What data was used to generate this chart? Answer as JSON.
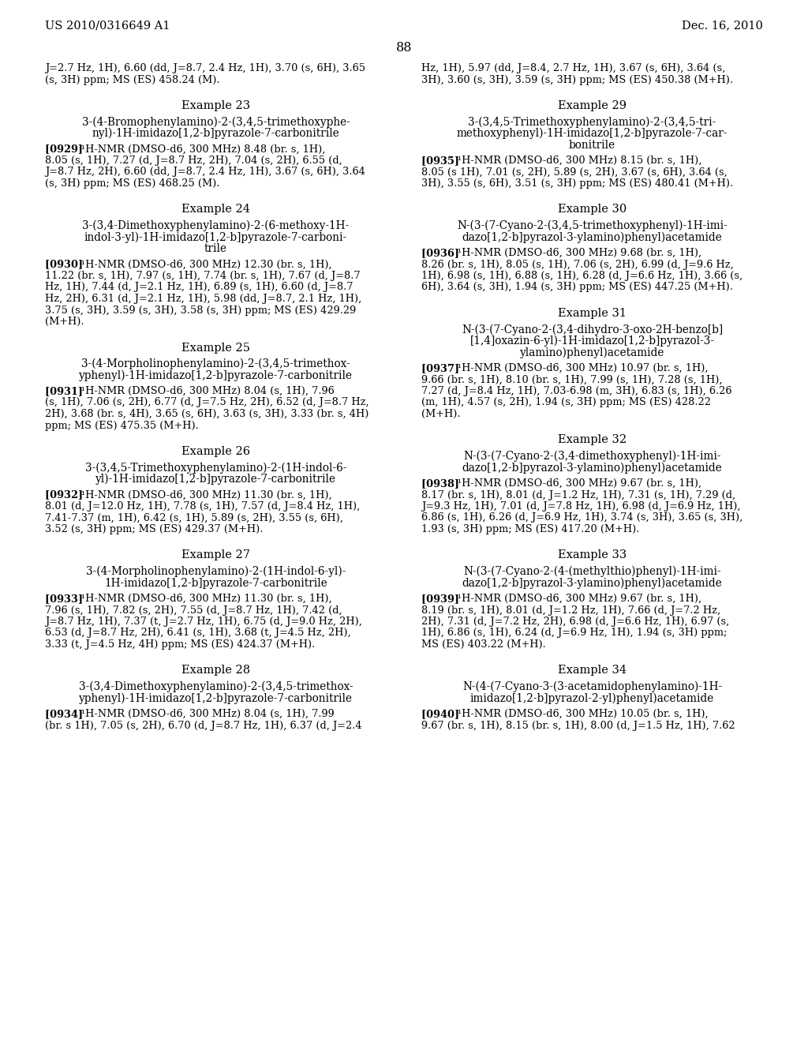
{
  "background_color": "#ffffff",
  "header_left": "US 2010/0316649 A1",
  "header_right": "Dec. 16, 2010",
  "page_number": "88",
  "left_column": [
    {
      "type": "continuation",
      "text": "J=2.7 Hz, 1H), 6.60 (dd, J=8.7, 2.4 Hz, 1H), 3.70 (s, 6H), 3.65\n(s, 3H) ppm; MS (ES) 458.24 (M)."
    },
    {
      "type": "example_header",
      "text": "Example 23"
    },
    {
      "type": "compound_title",
      "text": "3-(4-Bromophenylamino)-2-(3,4,5-trimethoxyphe-\nnyl)-1H-imidazo[1,2-b]pyrazole-7-carbonitrile"
    },
    {
      "type": "nmr",
      "ref": "[0929]",
      "text": "¹H-NMR (DMSO-d6, 300 MHz) 8.48 (br. s, 1H),\n8.05 (s, 1H), 7.27 (d, J=8.7 Hz, 2H), 7.04 (s, 2H), 6.55 (d,\nJ=8.7 Hz, 2H), 6.60 (dd, J=8.7, 2.4 Hz, 1H), 3.67 (s, 6H), 3.64\n(s, 3H) ppm; MS (ES) 468.25 (M)."
    },
    {
      "type": "example_header",
      "text": "Example 24"
    },
    {
      "type": "compound_title",
      "text": "3-(3,4-Dimethoxyphenylamino)-2-(6-methoxy-1H-\nindol-3-yl)-1H-imidazo[1,2-b]pyrazole-7-carboni-\ntrile"
    },
    {
      "type": "nmr",
      "ref": "[0930]",
      "text": "¹H-NMR (DMSO-d6, 300 MHz) 12.30 (br. s, 1H),\n11.22 (br. s, 1H), 7.97 (s, 1H), 7.74 (br. s, 1H), 7.67 (d, J=8.7\nHz, 1H), 7.44 (d, J=2.1 Hz, 1H), 6.89 (s, 1H), 6.60 (d, J=8.7\nHz, 2H), 6.31 (d, J=2.1 Hz, 1H), 5.98 (dd, J=8.7, 2.1 Hz, 1H),\n3.75 (s, 3H), 3.59 (s, 3H), 3.58 (s, 3H) ppm; MS (ES) 429.29\n(M+H)."
    },
    {
      "type": "example_header",
      "text": "Example 25"
    },
    {
      "type": "compound_title",
      "text": "3-(4-Morpholinophenylamino)-2-(3,4,5-trimethox-\nyphenyl)-1H-imidazo[1,2-b]pyrazole-7-carbonitrile"
    },
    {
      "type": "nmr",
      "ref": "[0931]",
      "text": "¹H-NMR (DMSO-d6, 300 MHz) 8.04 (s, 1H), 7.96\n(s, 1H), 7.06 (s, 2H), 6.77 (d, J=7.5 Hz, 2H), 6.52 (d, J=8.7 Hz,\n2H), 3.68 (br. s, 4H), 3.65 (s, 6H), 3.63 (s, 3H), 3.33 (br. s, 4H)\nppm; MS (ES) 475.35 (M+H)."
    },
    {
      "type": "example_header",
      "text": "Example 26"
    },
    {
      "type": "compound_title",
      "text": "3-(3,4,5-Trimethoxyphenylamino)-2-(1H-indol-6-\nyl)-1H-imidazo[1,2-b]pyrazole-7-carbonitrile"
    },
    {
      "type": "nmr",
      "ref": "[0932]",
      "text": "¹H-NMR (DMSO-d6, 300 MHz) 11.30 (br. s, 1H),\n8.01 (d, J=12.0 Hz, 1H), 7.78 (s, 1H), 7.57 (d, J=8.4 Hz, 1H),\n7.41-7.37 (m, 1H), 6.42 (s, 1H), 5.89 (s, 2H), 3.55 (s, 6H),\n3.52 (s, 3H) ppm; MS (ES) 429.37 (M+H)."
    },
    {
      "type": "example_header",
      "text": "Example 27"
    },
    {
      "type": "compound_title",
      "text": "3-(4-Morpholinophenylamino)-2-(1H-indol-6-yl)-\n1H-imidazo[1,2-b]pyrazole-7-carbonitrile"
    },
    {
      "type": "nmr",
      "ref": "[0933]",
      "text": "¹H-NMR (DMSO-d6, 300 MHz) 11.30 (br. s, 1H),\n7.96 (s, 1H), 7.82 (s, 2H), 7.55 (d, J=8.7 Hz, 1H), 7.42 (d,\nJ=8.7 Hz, 1H), 7.37 (t, J=2.7 Hz, 1H), 6.75 (d, J=9.0 Hz, 2H),\n6.53 (d, J=8.7 Hz, 2H), 6.41 (s, 1H), 3.68 (t, J=4.5 Hz, 2H),\n3.33 (t, J=4.5 Hz, 4H) ppm; MS (ES) 424.37 (M+H)."
    },
    {
      "type": "example_header",
      "text": "Example 28"
    },
    {
      "type": "compound_title",
      "text": "3-(3,4-Dimethoxyphenylamino)-2-(3,4,5-trimethox-\nyphenyl)-1H-imidazo[1,2-b]pyrazole-7-carbonitrile"
    },
    {
      "type": "nmr_start",
      "ref": "[0934]",
      "text": "¹H-NMR (DMSO-d6, 300 MHz) 8.04 (s, 1H), 7.99\n(br. s 1H), 7.05 (s, 2H), 6.70 (d, J=8.7 Hz, 1H), 6.37 (d, J=2.4"
    }
  ],
  "right_column": [
    {
      "type": "continuation",
      "text": "Hz, 1H), 5.97 (dd, J=8.4, 2.7 Hz, 1H), 3.67 (s, 6H), 3.64 (s,\n3H), 3.60 (s, 3H), 3.59 (s, 3H) ppm; MS (ES) 450.38 (M+H)."
    },
    {
      "type": "example_header",
      "text": "Example 29"
    },
    {
      "type": "compound_title",
      "text": "3-(3,4,5-Trimethoxyphenylamino)-2-(3,4,5-tri-\nmethoxyphenyl)-1H-imidazo[1,2-b]pyrazole-7-car-\nbonitrile"
    },
    {
      "type": "nmr",
      "ref": "[0935]",
      "text": "¹H-NMR (DMSO-d6, 300 MHz) 8.15 (br. s, 1H),\n8.05 (s 1H), 7.01 (s, 2H), 5.89 (s, 2H), 3.67 (s, 6H), 3.64 (s,\n3H), 3.55 (s, 6H), 3.51 (s, 3H) ppm; MS (ES) 480.41 (M+H)."
    },
    {
      "type": "example_header",
      "text": "Example 30"
    },
    {
      "type": "compound_title",
      "text": "N-(3-(7-Cyano-2-(3,4,5-trimethoxyphenyl)-1H-imi-\ndazo[1,2-b]pyrazol-3-ylamino)phenyl)acetamide"
    },
    {
      "type": "nmr",
      "ref": "[0936]",
      "text": "¹H-NMR (DMSO-d6, 300 MHz) 9.68 (br. s, 1H),\n8.26 (br. s, 1H), 8.05 (s, 1H), 7.06 (s, 2H), 6.99 (d, J=9.6 Hz,\n1H), 6.98 (s, 1H), 6.88 (s, 1H), 6.28 (d, J=6.6 Hz, 1H), 3.66 (s,\n6H), 3.64 (s, 3H), 1.94 (s, 3H) ppm; MS (ES) 447.25 (M+H)."
    },
    {
      "type": "example_header",
      "text": "Example 31"
    },
    {
      "type": "compound_title",
      "text": "N-(3-(7-Cyano-2-(3,4-dihydro-3-oxo-2H-benzo[b]\n[1,4]oxazin-6-yl)-1H-imidazo[1,2-b]pyrazol-3-\nylamino)phenyl)acetamide"
    },
    {
      "type": "nmr",
      "ref": "[0937]",
      "text": "¹H-NMR (DMSO-d6, 300 MHz) 10.97 (br. s, 1H),\n9.66 (br. s, 1H), 8.10 (br. s, 1H), 7.99 (s, 1H), 7.28 (s, 1H),\n7.27 (d, J=8.4 Hz, 1H), 7.03-6.98 (m, 3H), 6.83 (s, 1H), 6.26\n(m, 1H), 4.57 (s, 2H), 1.94 (s, 3H) ppm; MS (ES) 428.22\n(M+H)."
    },
    {
      "type": "example_header",
      "text": "Example 32"
    },
    {
      "type": "compound_title",
      "text": "N-(3-(7-Cyano-2-(3,4-dimethoxyphenyl)-1H-imi-\ndazo[1,2-b]pyrazol-3-ylamino)phenyl)acetamide"
    },
    {
      "type": "nmr",
      "ref": "[0938]",
      "text": "¹H-NMR (DMSO-d6, 300 MHz) 9.67 (br. s, 1H),\n8.17 (br. s, 1H), 8.01 (d, J=1.2 Hz, 1H), 7.31 (s, 1H), 7.29 (d,\nJ=9.3 Hz, 1H), 7.01 (d, J=7.8 Hz, 1H), 6.98 (d, J=6.9 Hz, 1H),\n6.86 (s, 1H), 6.26 (d, J=6.9 Hz, 1H), 3.74 (s, 3H), 3.65 (s, 3H),\n1.93 (s, 3H) ppm; MS (ES) 417.20 (M+H)."
    },
    {
      "type": "example_header",
      "text": "Example 33"
    },
    {
      "type": "compound_title",
      "text": "N-(3-(7-Cyano-2-(4-(methylthio)phenyl)-1H-imi-\ndazo[1,2-b]pyrazol-3-ylamino)phenyl)acetamide"
    },
    {
      "type": "nmr",
      "ref": "[0939]",
      "text": "¹H-NMR (DMSO-d6, 300 MHz) 9.67 (br. s, 1H),\n8.19 (br. s, 1H), 8.01 (d, J=1.2 Hz, 1H), 7.66 (d, J=7.2 Hz,\n2H), 7.31 (d, J=7.2 Hz, 2H), 6.98 (d, J=6.6 Hz, 1H), 6.97 (s,\n1H), 6.86 (s, 1H), 6.24 (d, J=6.9 Hz, 1H), 1.94 (s, 3H) ppm;\nMS (ES) 403.22 (M+H)."
    },
    {
      "type": "example_header",
      "text": "Example 34"
    },
    {
      "type": "compound_title",
      "text": "N-(4-(7-Cyano-3-(3-acetamidophenylamino)-1H-\nimidazo[1,2-b]pyrazol-2-yl)phenyl)acetamide"
    },
    {
      "type": "nmr_start",
      "ref": "[0940]",
      "text": "¹H-NMR (DMSO-d6, 300 MHz) 10.05 (br. s, 1H),\n9.67 (br. s, 1H), 8.15 (br. s, 1H), 8.00 (d, J=1.5 Hz, 1H), 7.62"
    }
  ]
}
